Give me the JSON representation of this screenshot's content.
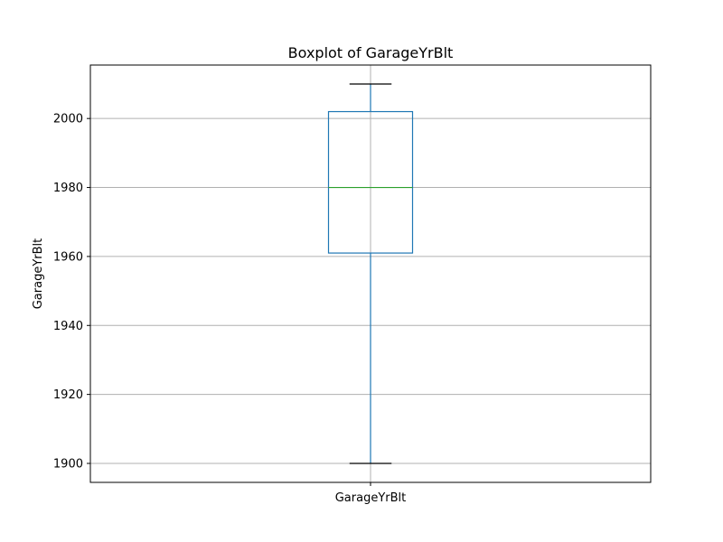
{
  "chart_data": {
    "type": "box",
    "title": "Boxplot of GarageYrBlt",
    "xlabel": "",
    "ylabel": "GarageYrBlt",
    "categories": [
      "GarageYrBlt"
    ],
    "boxes": [
      {
        "name": "GarageYrBlt",
        "whisker_low": 1900,
        "q1": 1961,
        "median": 1980,
        "q3": 2002,
        "whisker_high": 2010
      }
    ],
    "ylim": [
      1894.5,
      2015.5
    ],
    "yticks": [
      1900,
      1920,
      1940,
      1960,
      1980,
      2000
    ],
    "ytick_labels": [
      "1900",
      "1920",
      "1940",
      "1960",
      "1980",
      "2000"
    ],
    "grid": true,
    "colors": {
      "box": "#1f77b4",
      "median": "#2ca02c",
      "caps": "#000000",
      "grid": "#b0b0b0",
      "frame": "#000000"
    }
  }
}
